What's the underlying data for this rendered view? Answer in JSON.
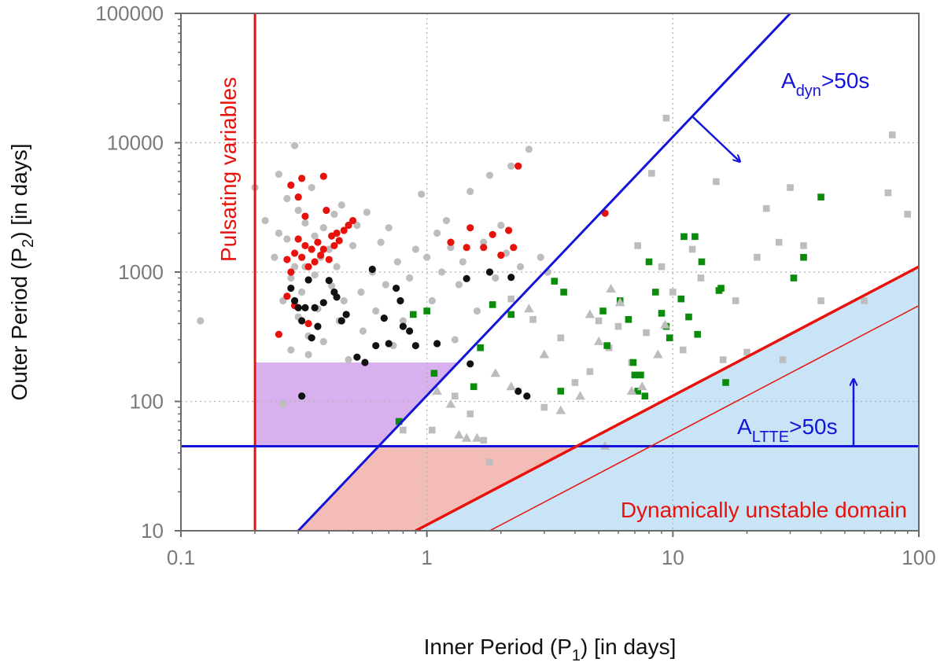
{
  "chart_data": {
    "type": "scatter",
    "xlabel": {
      "main": "Inner Period (P",
      "sub": "1",
      "tail": ") [in days]"
    },
    "ylabel": {
      "main": "Outer Period (P",
      "sub": "2",
      "tail": ") [in days]"
    },
    "x_scale": "log",
    "y_scale": "log",
    "xlim": [
      0.1,
      100
    ],
    "ylim": [
      10,
      100000
    ],
    "grid": true,
    "x_ticks": [
      {
        "value": 0.1,
        "label": "0.1"
      },
      {
        "value": 1,
        "label": "1"
      },
      {
        "value": 10,
        "label": "10"
      },
      {
        "value": 100,
        "label": "100"
      }
    ],
    "y_ticks": [
      {
        "value": 10,
        "label": "10"
      },
      {
        "value": 100,
        "label": "100"
      },
      {
        "value": 1000,
        "label": "1000"
      },
      {
        "value": 10000,
        "label": "10000"
      },
      {
        "value": 100000,
        "label": "100000"
      }
    ],
    "colors": {
      "red": "#e8120c",
      "blue": "#1414d8",
      "black": "#111111",
      "gray": "#bdbdbd",
      "green": "#0a8c0a",
      "purple_region": "#d8b0ee",
      "pink_region": "#f4bcb6",
      "blue_region": "#c8e4f6",
      "frame": "#6a6a6a"
    },
    "annotations": {
      "pulsating": "Pulsating variables",
      "adyn": {
        "main": "A",
        "sub": "dyn",
        "tail": ">50s"
      },
      "altte": {
        "main": "A",
        "sub": "LTTE",
        "tail": ">50s"
      },
      "unstable": "Dynamically unstable domain"
    },
    "lines": {
      "pulsating_p1": 0.2,
      "altte_p2": 45,
      "adyn_line": [
        [
          0.3,
          10
        ],
        [
          30,
          100000
        ]
      ],
      "unstable_line": [
        [
          0.9,
          10
        ],
        [
          100,
          1100
        ]
      ],
      "unstable_thin_line": [
        [
          1.8,
          10
        ],
        [
          100,
          550
        ]
      ]
    },
    "series": [
      {
        "kind": "circle",
        "color": "gray",
        "points": [
          [
            0.12,
            420
          ],
          [
            0.2,
            4500
          ],
          [
            0.22,
            2500
          ],
          [
            0.24,
            1300
          ],
          [
            0.25,
            5700
          ],
          [
            0.25,
            2000
          ],
          [
            0.26,
            600
          ],
          [
            0.26,
            95
          ],
          [
            0.27,
            3700
          ],
          [
            0.27,
            1800
          ],
          [
            0.28,
            900
          ],
          [
            0.28,
            250
          ],
          [
            0.29,
            9500
          ],
          [
            0.29,
            1100
          ],
          [
            0.3,
            3000
          ],
          [
            0.3,
            450
          ],
          [
            0.31,
            700
          ],
          [
            0.32,
            2400
          ],
          [
            0.32,
            1100
          ],
          [
            0.33,
            320
          ],
          [
            0.33,
            230
          ],
          [
            0.34,
            4500
          ],
          [
            0.35,
            1900
          ],
          [
            0.35,
            950
          ],
          [
            0.36,
            520
          ],
          [
            0.37,
            1300
          ],
          [
            0.38,
            290
          ],
          [
            0.38,
            2200
          ],
          [
            0.4,
            1500
          ],
          [
            0.41,
            780
          ],
          [
            0.42,
            2800
          ],
          [
            0.43,
            1100
          ],
          [
            0.44,
            420
          ],
          [
            0.45,
            3300
          ],
          [
            0.46,
            600
          ],
          [
            0.48,
            210
          ],
          [
            0.5,
            1600
          ],
          [
            0.52,
            2300
          ],
          [
            0.54,
            700
          ],
          [
            0.55,
            350
          ],
          [
            0.57,
            2900
          ],
          [
            0.6,
            1000
          ],
          [
            0.62,
            500
          ],
          [
            0.65,
            1700
          ],
          [
            0.68,
            800
          ],
          [
            0.7,
            2200
          ],
          [
            0.73,
            270
          ],
          [
            0.76,
            1200
          ],
          [
            0.8,
            420
          ],
          [
            0.85,
            900
          ],
          [
            0.9,
            1500
          ],
          [
            0.95,
            4000
          ],
          [
            1.0,
            1300
          ],
          [
            1.05,
            600
          ],
          [
            1.1,
            2000
          ],
          [
            1.15,
            1000
          ],
          [
            1.2,
            2500
          ],
          [
            1.25,
            1550
          ],
          [
            1.3,
            300
          ],
          [
            1.35,
            800
          ],
          [
            1.4,
            1200
          ],
          [
            1.5,
            4200
          ],
          [
            1.6,
            500
          ],
          [
            1.7,
            1700
          ],
          [
            1.8,
            5600
          ],
          [
            1.9,
            900
          ],
          [
            2.0,
            2300
          ],
          [
            2.1,
            1400
          ],
          [
            2.2,
            6600
          ],
          [
            2.4,
            1100
          ],
          [
            2.6,
            8900
          ],
          [
            2.9,
            1300
          ],
          [
            3.1,
            1000
          ]
        ]
      },
      {
        "kind": "circle",
        "color": "red",
        "points": [
          [
            0.25,
            330
          ],
          [
            0.27,
            1250
          ],
          [
            0.27,
            650
          ],
          [
            0.28,
            1000
          ],
          [
            0.28,
            4700
          ],
          [
            0.29,
            1400
          ],
          [
            0.29,
            550
          ],
          [
            0.3,
            1800
          ],
          [
            0.3,
            3800
          ],
          [
            0.31,
            1300
          ],
          [
            0.31,
            5300
          ],
          [
            0.32,
            1600
          ],
          [
            0.32,
            2700
          ],
          [
            0.33,
            1100
          ],
          [
            0.33,
            400
          ],
          [
            0.34,
            1500
          ],
          [
            0.35,
            1200
          ],
          [
            0.36,
            1700
          ],
          [
            0.37,
            1350
          ],
          [
            0.38,
            1500
          ],
          [
            0.38,
            5500
          ],
          [
            0.39,
            3000
          ],
          [
            0.4,
            1250
          ],
          [
            0.41,
            1900
          ],
          [
            0.42,
            1600
          ],
          [
            0.43,
            2000
          ],
          [
            0.44,
            1750
          ],
          [
            0.46,
            2100
          ],
          [
            0.48,
            2300
          ],
          [
            0.5,
            2500
          ],
          [
            1.25,
            1700
          ],
          [
            1.5,
            2200
          ],
          [
            1.45,
            1550
          ],
          [
            1.7,
            1550
          ],
          [
            1.85,
            1950
          ],
          [
            2.0,
            1350
          ],
          [
            2.25,
            1550
          ],
          [
            2.35,
            6600
          ],
          [
            2.15,
            2100
          ],
          [
            5.3,
            2850
          ]
        ]
      },
      {
        "kind": "circle",
        "color": "black",
        "points": [
          [
            0.28,
            750
          ],
          [
            0.29,
            600
          ],
          [
            0.3,
            530
          ],
          [
            0.31,
            420
          ],
          [
            0.31,
            110
          ],
          [
            0.32,
            530
          ],
          [
            0.33,
            870
          ],
          [
            0.34,
            310
          ],
          [
            0.35,
            530
          ],
          [
            0.36,
            380
          ],
          [
            0.38,
            580
          ],
          [
            0.4,
            860
          ],
          [
            0.42,
            700
          ],
          [
            0.43,
            640
          ],
          [
            0.45,
            420
          ],
          [
            0.47,
            470
          ],
          [
            0.52,
            220
          ],
          [
            0.56,
            200
          ],
          [
            0.6,
            1050
          ],
          [
            0.62,
            270
          ],
          [
            0.67,
            440
          ],
          [
            0.7,
            280
          ],
          [
            0.75,
            750
          ],
          [
            0.78,
            600
          ],
          [
            0.8,
            380
          ],
          [
            0.85,
            350
          ],
          [
            0.9,
            270
          ],
          [
            1.1,
            280
          ],
          [
            1.45,
            890
          ],
          [
            1.5,
            195
          ],
          [
            1.8,
            1000
          ],
          [
            2.2,
            910
          ],
          [
            2.35,
            120
          ],
          [
            2.55,
            110
          ]
        ]
      },
      {
        "kind": "square",
        "color": "gray",
        "points": [
          [
            0.8,
            60
          ],
          [
            1.05,
            60
          ],
          [
            1.3,
            110
          ],
          [
            1.5,
            80
          ],
          [
            1.7,
            50
          ],
          [
            1.8,
            34
          ],
          [
            2.2,
            620
          ],
          [
            2.7,
            430
          ],
          [
            3.0,
            90
          ],
          [
            3.5,
            310
          ],
          [
            4.0,
            140
          ],
          [
            4.6,
            170
          ],
          [
            5.0,
            420
          ],
          [
            5.5,
            260
          ],
          [
            6.0,
            380
          ],
          [
            6.8,
            200
          ],
          [
            7.2,
            1600
          ],
          [
            7.8,
            340
          ],
          [
            8.2,
            5800
          ],
          [
            9.0,
            1100
          ],
          [
            10.0,
            700
          ],
          [
            11.0,
            250
          ],
          [
            12.0,
            1500
          ],
          [
            13.0,
            900
          ],
          [
            15.0,
            5000
          ],
          [
            16.0,
            210
          ],
          [
            18.0,
            600
          ],
          [
            20.0,
            240
          ],
          [
            22.0,
            1300
          ],
          [
            24.0,
            3100
          ],
          [
            27.0,
            1700
          ],
          [
            28.0,
            210
          ],
          [
            30.0,
            4500
          ],
          [
            34.0,
            1600
          ],
          [
            40.0,
            600
          ],
          [
            60.0,
            600
          ],
          [
            75.0,
            4100
          ],
          [
            78.0,
            11500
          ],
          [
            90.0,
            2800
          ],
          [
            9.4,
            15500
          ]
        ]
      },
      {
        "kind": "square",
        "color": "green",
        "points": [
          [
            0.77,
            70
          ],
          [
            0.88,
            470
          ],
          [
            1.0,
            500
          ],
          [
            1.07,
            165
          ],
          [
            1.55,
            130
          ],
          [
            1.65,
            260
          ],
          [
            1.85,
            560
          ],
          [
            2.2,
            470
          ],
          [
            3.3,
            850
          ],
          [
            3.5,
            120
          ],
          [
            3.6,
            700
          ],
          [
            5.2,
            500
          ],
          [
            5.4,
            270
          ],
          [
            6.1,
            600
          ],
          [
            6.6,
            430
          ],
          [
            6.9,
            200
          ],
          [
            7.0,
            160
          ],
          [
            7.2,
            120
          ],
          [
            7.4,
            160
          ],
          [
            7.7,
            110
          ],
          [
            8.0,
            1200
          ],
          [
            8.5,
            700
          ],
          [
            9.0,
            480
          ],
          [
            9.4,
            380
          ],
          [
            9.7,
            310
          ],
          [
            10.8,
            620
          ],
          [
            11.1,
            1880
          ],
          [
            11.6,
            450
          ],
          [
            12.3,
            1880
          ],
          [
            12.6,
            330
          ],
          [
            13.1,
            1200
          ],
          [
            15.4,
            720
          ],
          [
            15.7,
            750
          ],
          [
            16.4,
            140
          ],
          [
            31.0,
            900
          ],
          [
            40.0,
            3800
          ],
          [
            34.0,
            1300
          ]
        ]
      },
      {
        "kind": "triangle",
        "color": "gray",
        "points": [
          [
            1.1,
            120
          ],
          [
            1.25,
            95
          ],
          [
            1.35,
            55
          ],
          [
            1.45,
            52
          ],
          [
            1.6,
            52
          ],
          [
            1.9,
            165
          ],
          [
            2.2,
            130
          ],
          [
            2.6,
            520
          ],
          [
            3.0,
            230
          ],
          [
            3.5,
            85
          ],
          [
            4.2,
            110
          ],
          [
            4.6,
            470
          ],
          [
            5.0,
            290
          ],
          [
            5.3,
            45
          ],
          [
            5.6,
            740
          ],
          [
            6.1,
            580
          ],
          [
            6.8,
            120
          ],
          [
            7.5,
            130
          ],
          [
            8.7,
            230
          ],
          [
            9.3,
            390
          ]
        ]
      }
    ]
  }
}
